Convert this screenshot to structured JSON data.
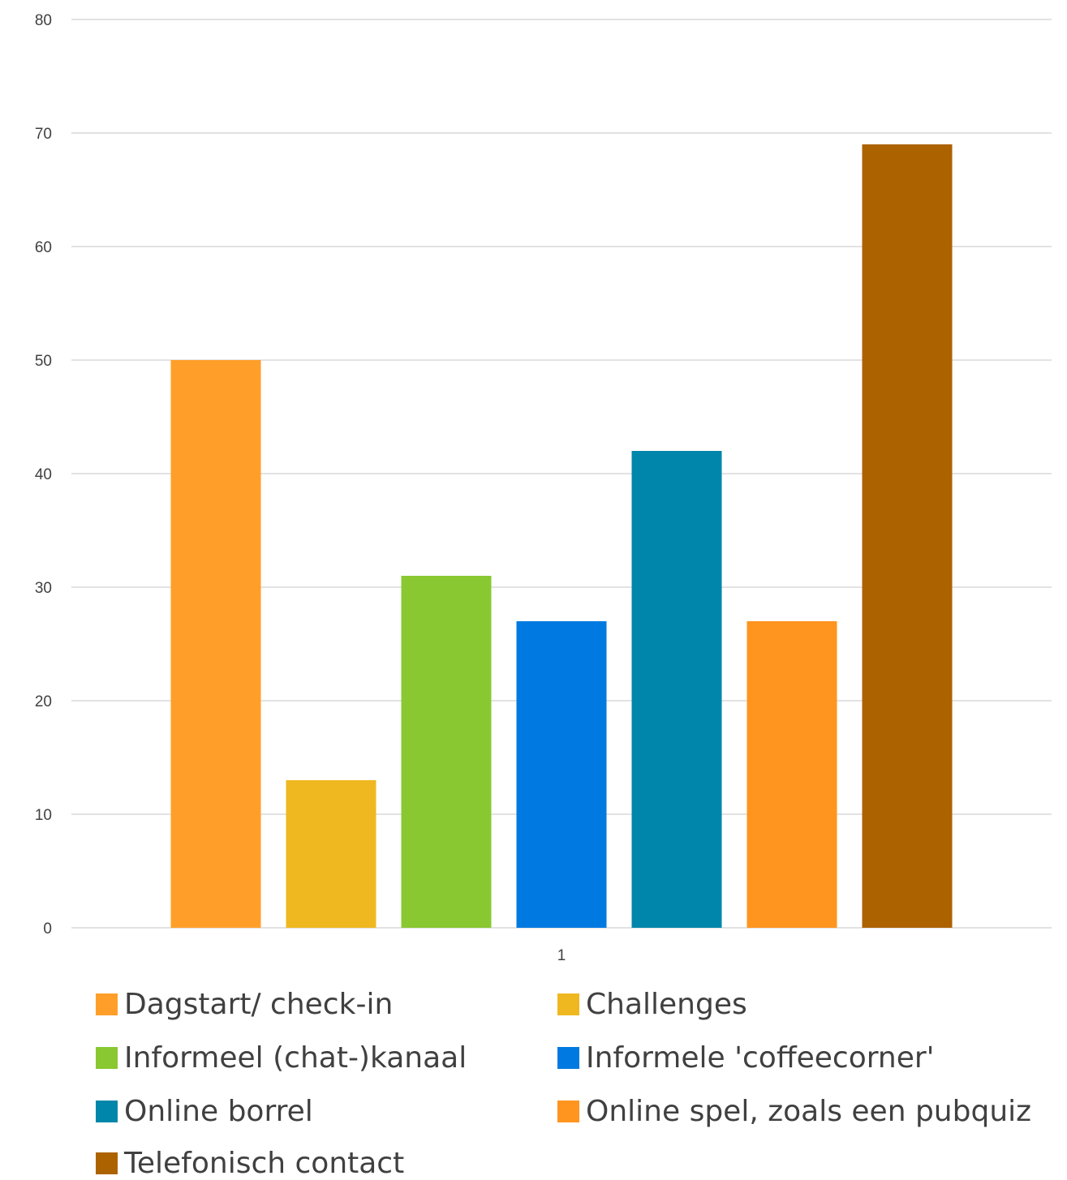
{
  "chart_data": {
    "type": "bar",
    "categories": [
      "1"
    ],
    "ylim": [
      0,
      80
    ],
    "yticks": [
      0,
      10,
      20,
      30,
      40,
      50,
      60,
      70,
      80
    ],
    "grid": true,
    "legend_position": "bottom",
    "series": [
      {
        "name": "Dagstart/ check-in",
        "values": [
          50
        ],
        "color": "#FF9F29"
      },
      {
        "name": "Challenges",
        "values": [
          13
        ],
        "color": "#EFB821"
      },
      {
        "name": "Informeel (chat-)kanaal",
        "values": [
          31
        ],
        "color": "#89C831"
      },
      {
        "name": "Informele 'coffeecorner'",
        "values": [
          27
        ],
        "color": "#007AE1"
      },
      {
        "name": "Online borrel",
        "values": [
          42
        ],
        "color": "#0086AA"
      },
      {
        "name": "Online spel, zoals een pubquiz",
        "values": [
          27
        ],
        "color": "#FF941E"
      },
      {
        "name": "Telefonisch contact",
        "values": [
          69
        ],
        "color": "#AD6200"
      }
    ]
  }
}
